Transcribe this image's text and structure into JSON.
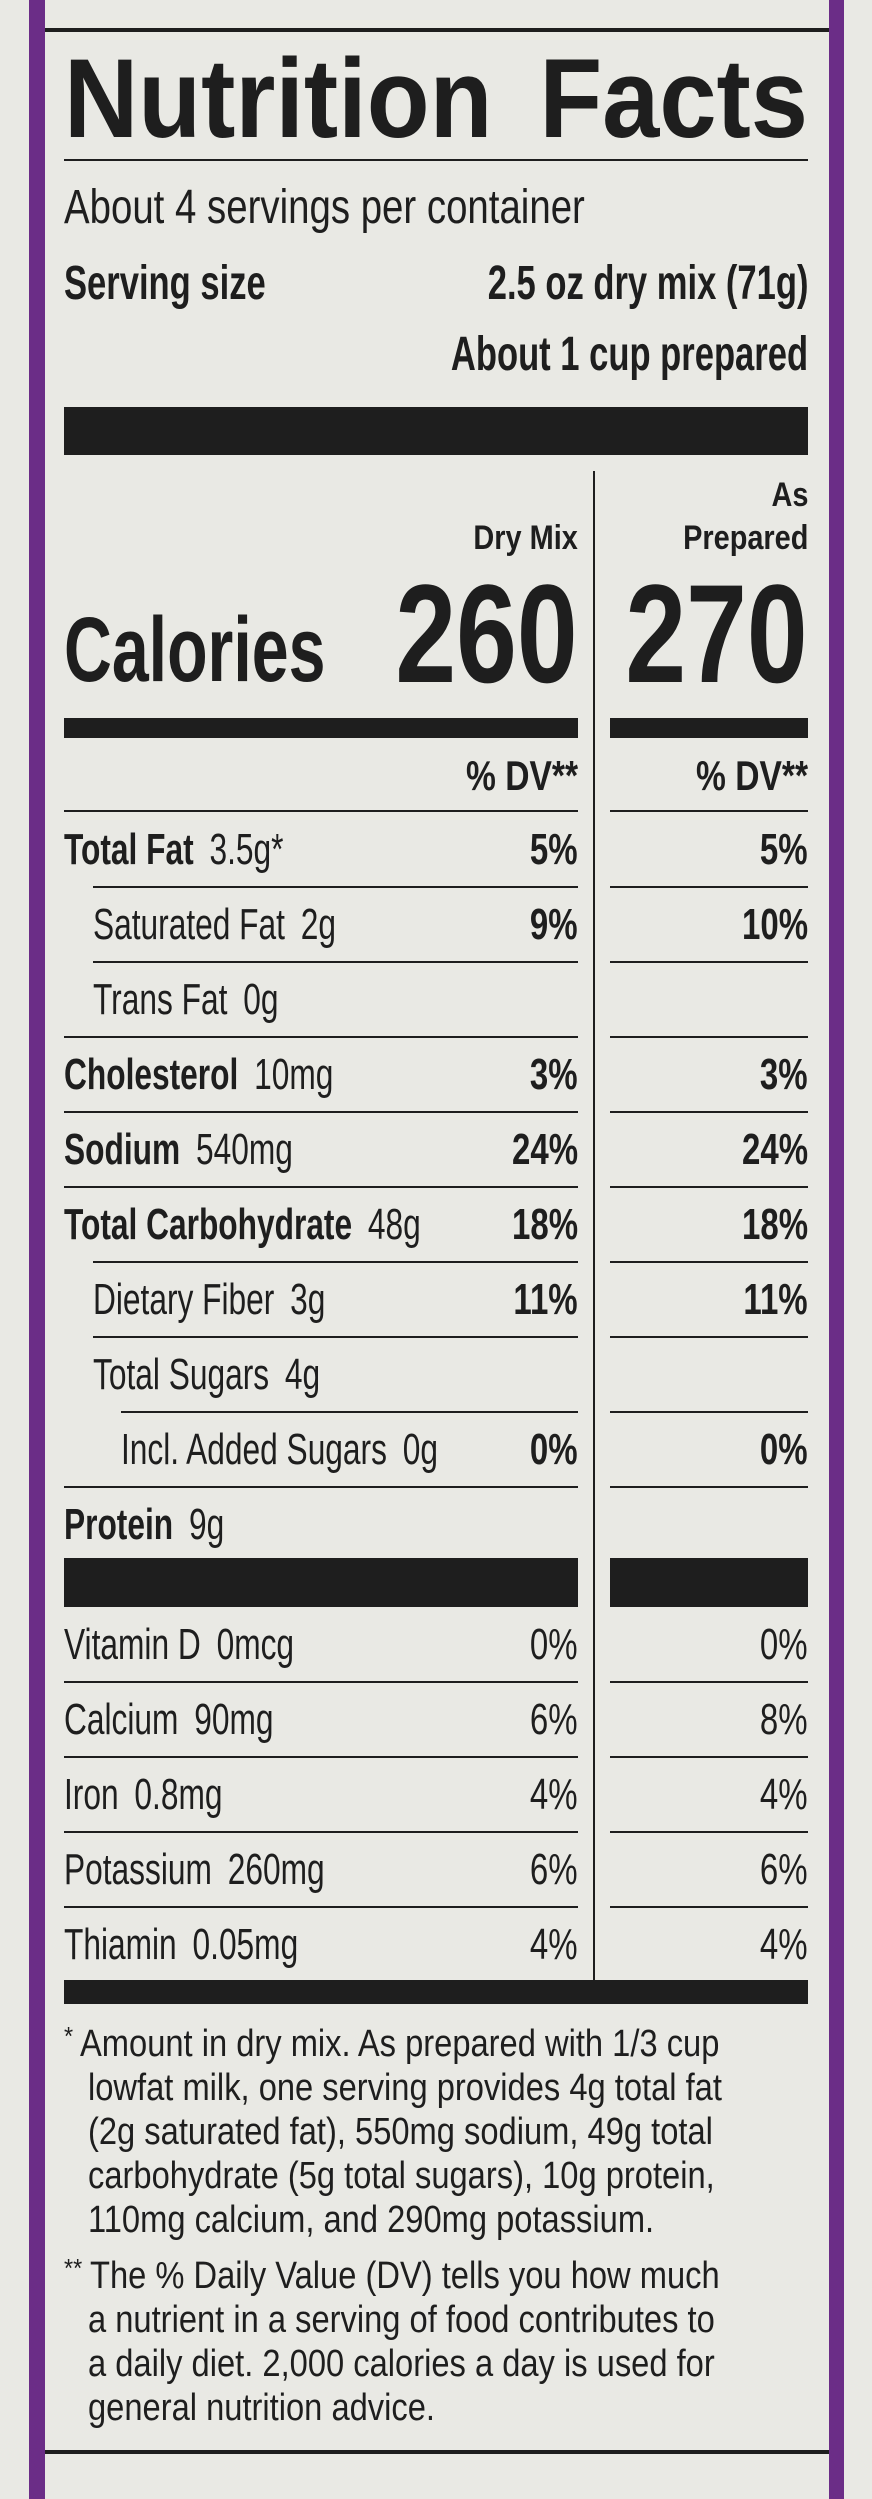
{
  "header": {
    "title": "Nutrition Facts",
    "servings": "About 4 servings per container",
    "serving_size_label": "Serving size",
    "serving_size": "2.5 oz dry mix (71g)",
    "serving_prepared": "About 1 cup prepared"
  },
  "columns": {
    "dry_mix": "Dry Mix",
    "as_prepared": [
      "As",
      "Prepared"
    ]
  },
  "calories": {
    "label": "Calories",
    "dry_mix": 260,
    "as_prepared": 270
  },
  "dv_header": "% DV**",
  "nutrients": [
    {
      "name": "Total Fat",
      "amount": "3.5g*",
      "dv_dry_mix": "5%",
      "dv_as_prepared": "5%"
    },
    {
      "name": "Saturated Fat",
      "amount": "2g",
      "dv_dry_mix": "9%",
      "dv_as_prepared": "10%"
    },
    {
      "name": "Trans Fat",
      "amount": "0g"
    },
    {
      "name": "Cholesterol",
      "amount": "10mg",
      "dv_dry_mix": "3%",
      "dv_as_prepared": "3%"
    },
    {
      "name": "Sodium",
      "amount": "540mg",
      "dv_dry_mix": "24%",
      "dv_as_prepared": "24%"
    },
    {
      "name": "Total Carbohydrate",
      "amount": "48g",
      "dv_dry_mix": "18%",
      "dv_as_prepared": "18%"
    },
    {
      "name": "Dietary Fiber",
      "amount": "3g",
      "dv_dry_mix": "11%",
      "dv_as_prepared": "11%"
    },
    {
      "name": "Total Sugars",
      "amount": "4g"
    },
    {
      "name": "Incl. Added Sugars",
      "amount": "0g",
      "dv_dry_mix": "0%",
      "dv_as_prepared": "0%"
    },
    {
      "name": "Protein",
      "amount": "9g"
    }
  ],
  "vitamins": [
    {
      "name": "Vitamin D",
      "amount": "0mcg",
      "dv_dry_mix": "0%",
      "dv_as_prepared": "0%"
    },
    {
      "name": "Calcium",
      "amount": "90mg",
      "dv_dry_mix": "6%",
      "dv_as_prepared": "8%"
    },
    {
      "name": "Iron",
      "amount": "0.8mg",
      "dv_dry_mix": "4%",
      "dv_as_prepared": "4%"
    },
    {
      "name": "Potassium",
      "amount": "260mg",
      "dv_dry_mix": "6%",
      "dv_as_prepared": "6%"
    },
    {
      "name": "Thiamin",
      "amount": "0.05mg",
      "dv_dry_mix": "4%",
      "dv_as_prepared": "4%"
    }
  ],
  "footnotes": [
    {
      "mark": "*",
      "lines": [
        "Amount in dry mix. As prepared with 1/3 cup",
        "lowfat milk, one serving provides 4g total fat",
        "(2g saturated fat), 550mg sodium, 49g total",
        "carbohydrate (5g total sugars), 10g protein,",
        "110mg calcium, and 290mg potassium."
      ]
    },
    {
      "mark": "**",
      "lines": [
        "The % Daily Value (DV) tells you how much",
        "a nutrient in a serving of food contributes to",
        "a daily diet. 2,000 calories a day is used for",
        "general nutrition advice."
      ]
    }
  ]
}
